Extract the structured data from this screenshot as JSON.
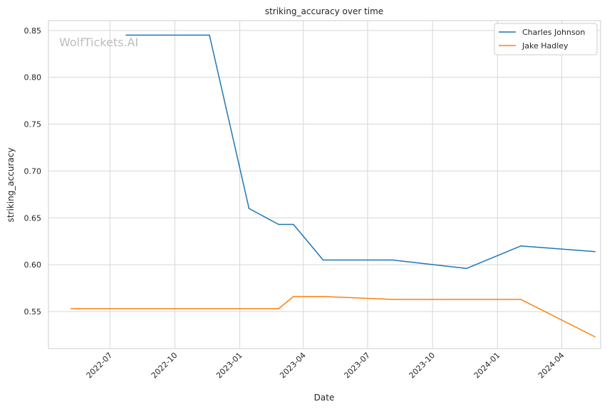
{
  "watermark": "WolfTickets.AI",
  "chart_data": {
    "type": "line",
    "title": "striking_accuracy over time",
    "xlabel": "Date",
    "ylabel": "striking_accuracy",
    "xlim": [
      "2022-04-05",
      "2024-05-26"
    ],
    "ylim": [
      0.5105,
      0.8605
    ],
    "x_ticks": [
      "2022-07-01",
      "2022-10-01",
      "2023-01-01",
      "2023-04-01",
      "2023-07-01",
      "2023-10-01",
      "2024-01-01",
      "2024-04-01"
    ],
    "x_tick_labels": [
      "2022-07",
      "2022-10",
      "2023-01",
      "2023-04",
      "2023-07",
      "2023-10",
      "2024-01",
      "2024-04"
    ],
    "y_ticks": [
      0.55,
      0.6,
      0.65,
      0.7,
      0.75,
      0.8,
      0.85
    ],
    "y_tick_labels": [
      "0.55",
      "0.60",
      "0.65",
      "0.70",
      "0.75",
      "0.80",
      "0.85"
    ],
    "grid": true,
    "legend_position": "top-right",
    "series": [
      {
        "name": "Charles Johnson",
        "color": "#1f77b4",
        "x": [
          "2022-07-24",
          "2022-11-19",
          "2023-01-14",
          "2023-02-25",
          "2023-03-18",
          "2023-04-29",
          "2023-08-05",
          "2023-11-18",
          "2024-02-03",
          "2024-05-18"
        ],
        "y": [
          0.845,
          0.845,
          0.66,
          0.643,
          0.643,
          0.605,
          0.605,
          0.596,
          0.62,
          0.614
        ]
      },
      {
        "name": "Jake Hadley",
        "color": "#ff7f0e",
        "x": [
          "2022-05-07",
          "2023-02-25",
          "2023-03-18",
          "2023-04-29",
          "2023-08-05",
          "2024-02-03",
          "2024-05-18"
        ],
        "y": [
          0.553,
          0.553,
          0.566,
          0.566,
          0.563,
          0.563,
          0.523
        ]
      }
    ]
  }
}
